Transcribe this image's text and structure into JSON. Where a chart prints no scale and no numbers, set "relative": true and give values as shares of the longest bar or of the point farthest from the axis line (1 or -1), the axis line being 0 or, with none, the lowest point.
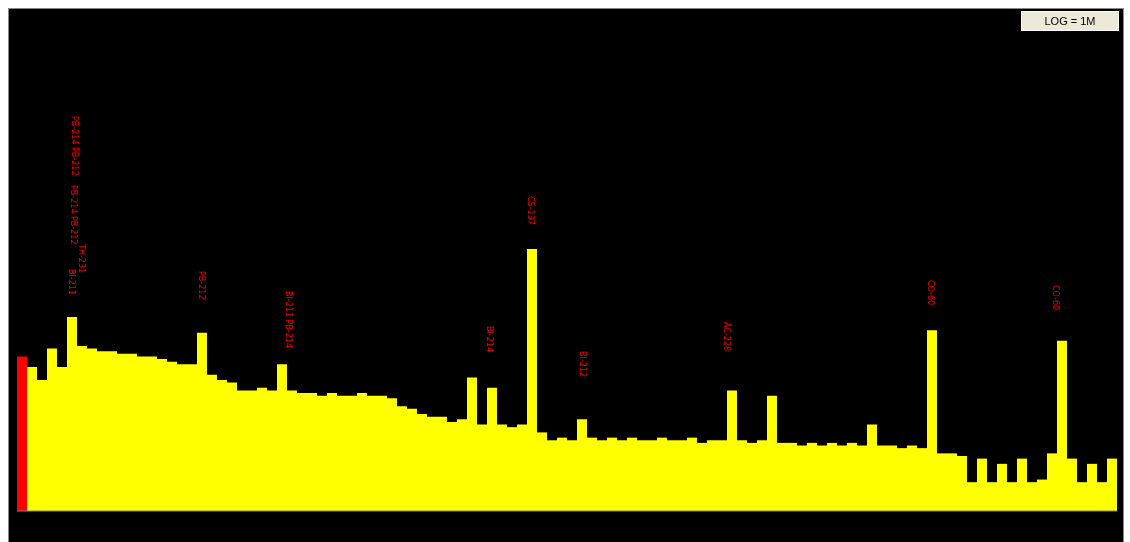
{
  "chart_data": {
    "type": "bar",
    "relative": true,
    "categories": [
      null,
      null,
      null,
      null,
      null,
      null,
      null,
      null,
      null,
      null,
      null,
      null,
      null,
      null,
      null,
      null,
      null,
      null,
      null,
      null,
      null,
      null,
      null,
      null,
      null,
      null,
      null,
      null,
      null,
      null,
      null,
      null,
      null,
      null,
      null,
      null,
      null,
      null,
      null,
      null,
      null,
      null,
      null,
      null,
      null,
      null,
      null,
      null,
      null,
      null,
      null,
      null,
      null,
      null,
      null,
      null,
      null,
      null,
      null,
      null,
      null,
      null,
      null,
      null,
      null,
      null,
      null,
      null,
      null,
      null,
      null,
      null,
      null,
      null,
      null,
      null,
      null,
      null,
      null,
      null,
      null,
      null,
      null,
      null,
      null,
      null,
      null,
      null,
      null,
      null,
      null,
      null,
      null,
      null,
      null,
      null,
      null,
      null,
      null,
      null,
      null,
      null,
      null,
      null,
      null,
      null,
      null,
      null,
      null,
      null
    ],
    "values": [
      0.59,
      0.55,
      0.5,
      0.62,
      0.55,
      0.74,
      0.63,
      0.62,
      0.61,
      0.61,
      0.6,
      0.6,
      0.59,
      0.59,
      0.58,
      0.57,
      0.56,
      0.56,
      0.68,
      0.52,
      0.5,
      0.49,
      0.46,
      0.46,
      0.47,
      0.46,
      0.56,
      0.46,
      0.45,
      0.45,
      0.44,
      0.45,
      0.44,
      0.44,
      0.45,
      0.44,
      0.44,
      0.43,
      0.4,
      0.39,
      0.37,
      0.36,
      0.36,
      0.34,
      0.35,
      0.51,
      0.33,
      0.47,
      0.33,
      0.32,
      0.33,
      1,
      0.3,
      0.27,
      0.28,
      0.27,
      0.35,
      0.28,
      0.27,
      0.28,
      0.27,
      0.28,
      0.27,
      0.27,
      0.28,
      0.27,
      0.27,
      0.28,
      0.26,
      0.27,
      0.27,
      0.46,
      0.27,
      0.26,
      0.27,
      0.44,
      0.26,
      0.26,
      0.25,
      0.26,
      0.25,
      0.26,
      0.25,
      0.26,
      0.25,
      0.33,
      0.25,
      0.25,
      0.24,
      0.25,
      0.24,
      0.69,
      0.22,
      0.22,
      0.21,
      0.11,
      0.2,
      0.11,
      0.18,
      0.11,
      0.2,
      0.11,
      0.12,
      0.22,
      0.65,
      0.2,
      0.11,
      0.18,
      0.11,
      0.2
    ],
    "colors": [
      "#ff0000",
      "#ffff00",
      "#ffff00",
      "#ffff00",
      "#ffff00",
      "#ffff00",
      "#ffff00",
      "#ffff00",
      "#ffff00",
      "#ffff00",
      "#ffff00",
      "#ffff00",
      "#ffff00",
      "#ffff00",
      "#ffff00",
      "#ffff00",
      "#ffff00",
      "#ffff00",
      "#ffff00",
      "#ffff00",
      "#ffff00",
      "#ffff00",
      "#ffff00",
      "#ffff00",
      "#ffff00",
      "#ffff00",
      "#ffff00",
      "#ffff00",
      "#ffff00",
      "#ffff00",
      "#ffff00",
      "#ffff00",
      "#ffff00",
      "#ffff00",
      "#ffff00",
      "#ffff00",
      "#ffff00",
      "#ffff00",
      "#ffff00",
      "#ffff00",
      "#ffff00",
      "#ffff00",
      "#ffff00",
      "#ffff00",
      "#ffff00",
      "#ffff00",
      "#ffff00",
      "#ffff00",
      "#ffff00",
      "#ffff00",
      "#ffff00",
      "#ffff00",
      "#ffff00",
      "#ffff00",
      "#ffff00",
      "#ffff00",
      "#ffff00",
      "#ffff00",
      "#ffff00",
      "#ffff00",
      "#ffff00",
      "#ffff00",
      "#ffff00",
      "#ffff00",
      "#ffff00",
      "#ffff00",
      "#ffff00",
      "#ffff00",
      "#ffff00",
      "#ffff00",
      "#ffff00",
      "#ffff00",
      "#ffff00",
      "#ffff00",
      "#ffff00",
      "#ffff00",
      "#ffff00",
      "#ffff00",
      "#ffff00",
      "#ffff00",
      "#ffff00",
      "#ffff00",
      "#ffff00",
      "#ffff00",
      "#ffff00",
      "#ffff00",
      "#ffff00",
      "#ffff00",
      "#ffff00",
      "#ffff00",
      "#ffff00",
      "#ffff00",
      "#ffff00",
      "#ffff00",
      "#ffff00",
      "#ffff00",
      "#ffff00",
      "#ffff00",
      "#ffff00",
      "#ffff00",
      "#ffff00",
      "#ffff00",
      "#ffff00",
      "#ffff00",
      "#ffff00",
      "#ffff00",
      "#ffff00",
      "#ffff00",
      "#ffff00",
      "#ffff00"
    ],
    "annotations": [
      "PB-214 PB-212",
      "PB-214 PB-212",
      "TH-231",
      "BI-211",
      "PB-212",
      "BI-211 PB-214",
      "BI-214",
      "CS-137",
      "BI-212",
      "AC-228",
      "CO-60",
      "CO-60",
      "LOG = 1M"
    ]
  }
}
